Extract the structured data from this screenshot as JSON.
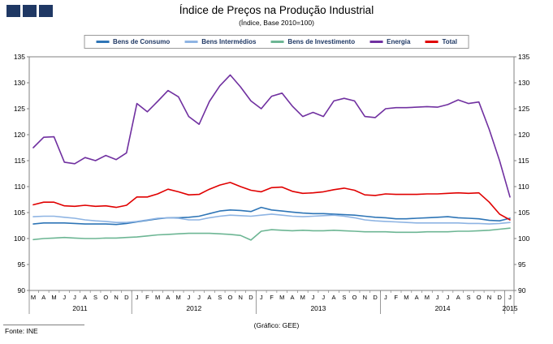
{
  "title": "Índice de Preços na Produção Industrial",
  "subtitle": "(Índice, Base 2010=100)",
  "footer": {
    "source": "Fonte: INE",
    "credit": "(Gráfico: GEE)"
  },
  "colors": {
    "brand_navy": "#1f3864",
    "axis_gray": "#808080"
  },
  "chart_data": {
    "type": "line",
    "title": "Índice de Preços na Produção Industrial",
    "subtitle": "(Índice, Base 2010=100)",
    "ylim": [
      90,
      135
    ],
    "ytick_step": 5,
    "grid": false,
    "legend_position": "top",
    "x_months": [
      "M",
      "A",
      "M",
      "J",
      "J",
      "A",
      "S",
      "O",
      "N",
      "D",
      "J",
      "F",
      "M",
      "A",
      "M",
      "J",
      "J",
      "A",
      "S",
      "O",
      "N",
      "D",
      "J",
      "F",
      "M",
      "A",
      "M",
      "J",
      "J",
      "A",
      "S",
      "O",
      "N",
      "D",
      "J",
      "F",
      "M",
      "A",
      "M",
      "J",
      "J",
      "A",
      "S",
      "O",
      "N",
      "D",
      "J"
    ],
    "years": [
      {
        "label": "2011",
        "start": 0,
        "count": 10
      },
      {
        "label": "2012",
        "start": 10,
        "count": 12
      },
      {
        "label": "2013",
        "start": 22,
        "count": 12
      },
      {
        "label": "2014",
        "start": 34,
        "count": 12
      },
      {
        "label": "2015",
        "start": 46,
        "count": 1
      }
    ],
    "series": [
      {
        "name": "Bens de Consumo",
        "color": "#2e75b6",
        "values": [
          102.8,
          103.0,
          103.0,
          103.0,
          102.9,
          102.8,
          102.8,
          102.8,
          102.7,
          102.9,
          103.2,
          103.5,
          103.8,
          104.0,
          104.0,
          104.1,
          104.3,
          104.8,
          105.3,
          105.5,
          105.4,
          105.2,
          106.0,
          105.5,
          105.3,
          105.1,
          104.9,
          104.8,
          104.8,
          104.7,
          104.6,
          104.5,
          104.3,
          104.1,
          104.0,
          103.8,
          103.8,
          103.9,
          104.0,
          104.1,
          104.2,
          104.0,
          103.9,
          103.8,
          103.5,
          103.4,
          103.9
        ]
      },
      {
        "name": "Bens Intermédios",
        "color": "#8eb4e3",
        "values": [
          104.2,
          104.3,
          104.3,
          104.1,
          103.9,
          103.6,
          103.4,
          103.3,
          103.1,
          103.1,
          103.3,
          103.6,
          103.9,
          104.0,
          103.9,
          103.6,
          103.6,
          104.0,
          104.3,
          104.5,
          104.4,
          104.3,
          104.5,
          104.7,
          104.5,
          104.3,
          104.2,
          104.3,
          104.4,
          104.5,
          104.3,
          104.0,
          103.6,
          103.4,
          103.3,
          103.2,
          103.1,
          103.0,
          103.0,
          103.0,
          103.0,
          103.0,
          102.9,
          102.9,
          102.8,
          102.9,
          103.1
        ]
      },
      {
        "name": "Bens de Investimento",
        "color": "#6db694",
        "values": [
          99.8,
          100.0,
          100.1,
          100.2,
          100.1,
          100.0,
          100.0,
          100.1,
          100.1,
          100.2,
          100.3,
          100.5,
          100.7,
          100.8,
          100.9,
          101.0,
          101.0,
          101.0,
          100.9,
          100.8,
          100.6,
          99.7,
          101.4,
          101.7,
          101.6,
          101.5,
          101.6,
          101.5,
          101.5,
          101.6,
          101.5,
          101.4,
          101.3,
          101.3,
          101.3,
          101.2,
          101.2,
          101.2,
          101.3,
          101.3,
          101.3,
          101.4,
          101.4,
          101.5,
          101.6,
          101.8,
          102.0
        ]
      },
      {
        "name": "Energia",
        "color": "#7030a0",
        "values": [
          117.5,
          119.5,
          119.6,
          114.7,
          114.4,
          115.6,
          115.0,
          116.0,
          115.2,
          116.5,
          126.0,
          124.4,
          126.4,
          128.5,
          127.3,
          123.5,
          122.0,
          126.4,
          129.4,
          131.5,
          129.2,
          126.5,
          125.0,
          127.4,
          128.0,
          125.5,
          123.5,
          124.3,
          123.5,
          126.5,
          127.0,
          126.5,
          123.5,
          123.3,
          125.0,
          125.2,
          125.2,
          125.3,
          125.4,
          125.3,
          125.8,
          126.7,
          126.0,
          126.3,
          121.0,
          115.0,
          108.0
        ]
      },
      {
        "name": "Total",
        "color": "#e00000",
        "values": [
          106.5,
          107.0,
          107.0,
          106.3,
          106.2,
          106.4,
          106.2,
          106.3,
          106.0,
          106.4,
          108.0,
          108.0,
          108.6,
          109.5,
          109.0,
          108.4,
          108.5,
          109.5,
          110.3,
          110.8,
          110.0,
          109.3,
          109.0,
          109.8,
          109.9,
          109.1,
          108.7,
          108.8,
          109.0,
          109.4,
          109.7,
          109.3,
          108.4,
          108.3,
          108.6,
          108.5,
          108.5,
          108.5,
          108.6,
          108.6,
          108.7,
          108.8,
          108.7,
          108.8,
          107.0,
          104.7,
          103.6
        ]
      }
    ]
  }
}
